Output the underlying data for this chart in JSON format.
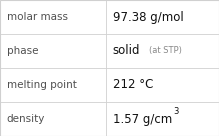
{
  "rows": [
    {
      "label": "molar mass",
      "value": "97.38 g/mol",
      "value_suffix": null,
      "superscript": null
    },
    {
      "label": "phase",
      "value": "solid",
      "value_suffix": "(at STP)",
      "superscript": null
    },
    {
      "label": "melting point",
      "value": "212 °C",
      "value_suffix": null,
      "superscript": null
    },
    {
      "label": "density",
      "value": "1.57 g/cm",
      "value_suffix": null,
      "superscript": "3"
    }
  ],
  "col_split": 0.485,
  "background_color": "#ffffff",
  "border_color": "#d0d0d0",
  "label_fontsize": 7.5,
  "value_fontsize": 8.5,
  "suffix_fontsize": 6.0,
  "super_fontsize": 6.0,
  "label_color": "#505050",
  "value_color": "#111111",
  "label_fontweight": "normal",
  "value_fontweight": "normal"
}
